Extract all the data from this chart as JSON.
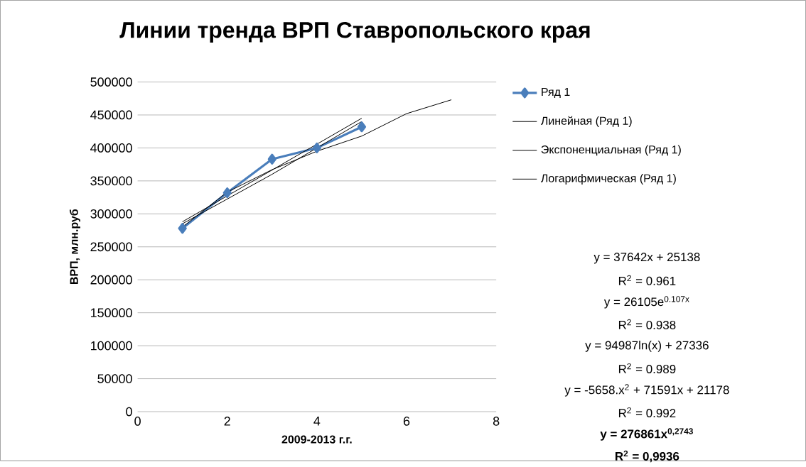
{
  "chart_data": {
    "type": "line",
    "title": "Линии тренда ВРП Ставропольского края",
    "xlabel": "2009-2013 г.г.",
    "ylabel": "ВРП, млн.руб",
    "xlim": [
      0,
      8
    ],
    "xticks": [
      0,
      2,
      4,
      6,
      8
    ],
    "ylim": [
      0,
      500000
    ],
    "yticks": [
      0,
      50000,
      100000,
      150000,
      200000,
      250000,
      300000,
      350000,
      400000,
      450000,
      500000
    ],
    "grid": "y",
    "legend": "right",
    "series": [
      {
        "name": "Ряд 1",
        "color": "#4a7ebb",
        "marker": "diamond",
        "x": [
          1,
          2,
          3,
          4,
          5
        ],
        "values": [
          278000,
          332000,
          383000,
          400000,
          432000
        ]
      },
      {
        "name": "Линейная (Ряд 1)",
        "color": "#000000",
        "marker": "none",
        "x": [
          1,
          5
        ],
        "values": [
          288000,
          445000
        ]
      },
      {
        "name": "Экспоненциальная (Ряд 1)",
        "color": "#000000",
        "marker": "none",
        "x": [
          1,
          3,
          5
        ],
        "values": [
          285000,
          360000,
          440000
        ]
      },
      {
        "name": "Логарифмическая (Ряд 1)",
        "color": "#000000",
        "marker": "none",
        "x": [
          1,
          2,
          3,
          4,
          5,
          6,
          7
        ],
        "values": [
          280000,
          333000,
          367000,
          395000,
          418000,
          452000,
          473000
        ]
      }
    ],
    "annotations": [
      "y = 37642x + 25138",
      "R$^{2}$ = 0.961",
      "y = 26105e$^{0.107x}$",
      "R$^{2}$ = 0.938",
      "y = 94987ln(x) + 27336",
      "R$^{2}$ = 0.989",
      "y = -5658.x$^{2}$ + 71591x + 21178",
      "R$^{2}$ = 0.992",
      "y = 276861x$^{0,2743}$",
      "R$^{2}$ = 0,9936"
    ]
  }
}
